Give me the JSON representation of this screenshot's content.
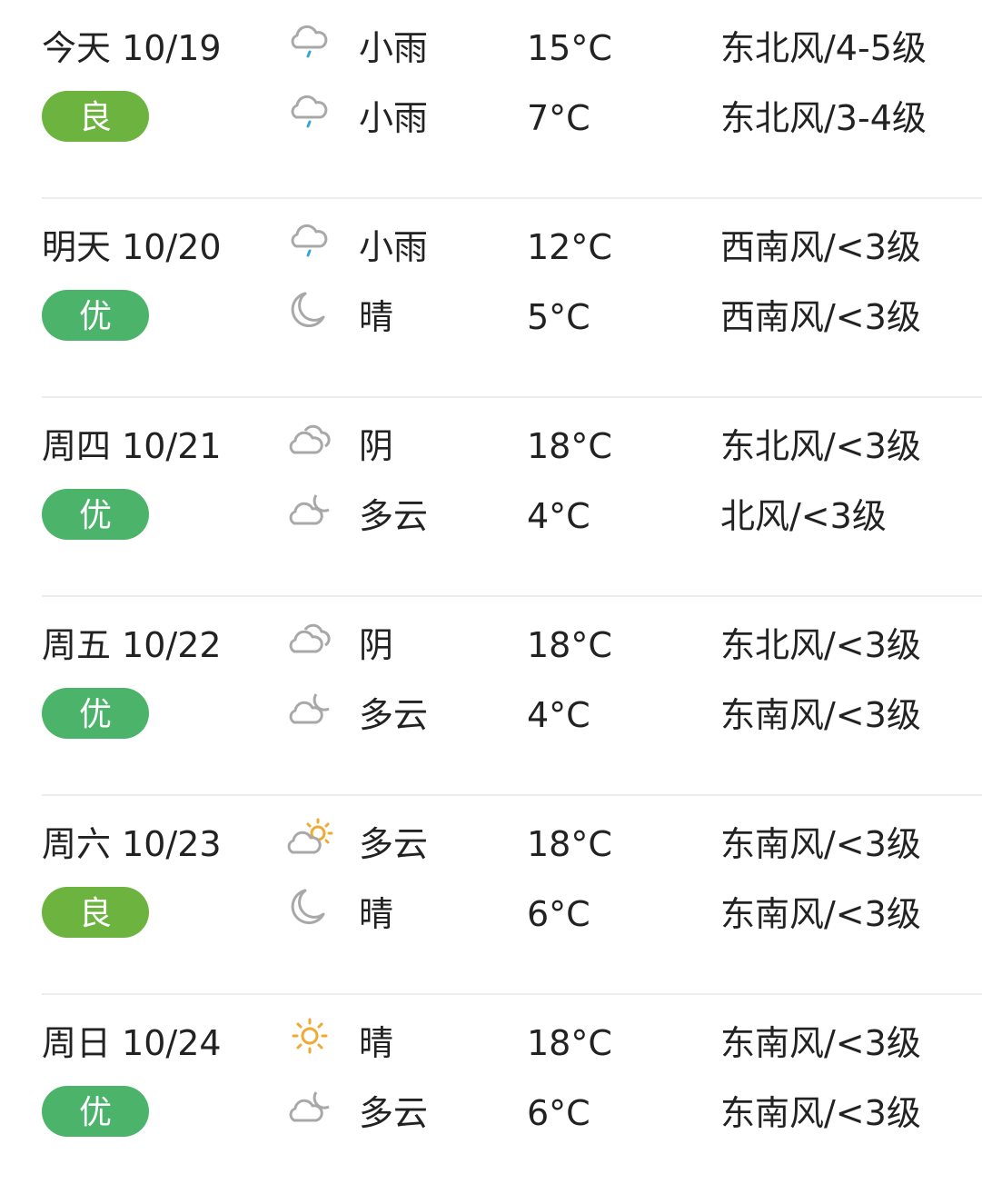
{
  "colors": {
    "good": "#6db33f",
    "excellent": "#4cb46a",
    "icon_gray": "#a8a8a8",
    "rain": "#3ca3d8",
    "sun": "#eeaa33"
  },
  "days": [
    {
      "date": "今天  10/19",
      "aqi": "良",
      "aqi_level": "good",
      "day": {
        "icon": "light-rain-icon",
        "cond": "小雨",
        "temp": "15°C",
        "wind": "东北风/4-5级"
      },
      "night": {
        "icon": "light-rain-icon",
        "cond": "小雨",
        "temp": "7°C",
        "wind": "东北风/3-4级"
      }
    },
    {
      "date": "明天  10/20",
      "aqi": "优",
      "aqi_level": "excellent",
      "day": {
        "icon": "light-rain-icon",
        "cond": "小雨",
        "temp": "12°C",
        "wind": "西南风/<3级"
      },
      "night": {
        "icon": "moon-icon",
        "cond": "晴",
        "temp": "5°C",
        "wind": "西南风/<3级"
      }
    },
    {
      "date": "周四  10/21",
      "aqi": "优",
      "aqi_level": "excellent",
      "day": {
        "icon": "overcast-icon",
        "cond": "阴",
        "temp": "18°C",
        "wind": "东北风/<3级"
      },
      "night": {
        "icon": "cloud-moon-icon",
        "cond": "多云",
        "temp": "4°C",
        "wind": "北风/<3级"
      }
    },
    {
      "date": "周五  10/22",
      "aqi": "优",
      "aqi_level": "excellent",
      "day": {
        "icon": "overcast-icon",
        "cond": "阴",
        "temp": "18°C",
        "wind": "东北风/<3级"
      },
      "night": {
        "icon": "cloud-moon-icon",
        "cond": "多云",
        "temp": "4°C",
        "wind": "东南风/<3级"
      }
    },
    {
      "date": "周六  10/23",
      "aqi": "良",
      "aqi_level": "good",
      "day": {
        "icon": "cloud-sun-icon",
        "cond": "多云",
        "temp": "18°C",
        "wind": "东南风/<3级"
      },
      "night": {
        "icon": "moon-icon",
        "cond": "晴",
        "temp": "6°C",
        "wind": "东南风/<3级"
      }
    },
    {
      "date": "周日  10/24",
      "aqi": "优",
      "aqi_level": "excellent",
      "day": {
        "icon": "sun-icon",
        "cond": "晴",
        "temp": "18°C",
        "wind": "东南风/<3级"
      },
      "night": {
        "icon": "cloud-moon-icon",
        "cond": "多云",
        "temp": "6°C",
        "wind": "东南风/<3级"
      }
    }
  ]
}
